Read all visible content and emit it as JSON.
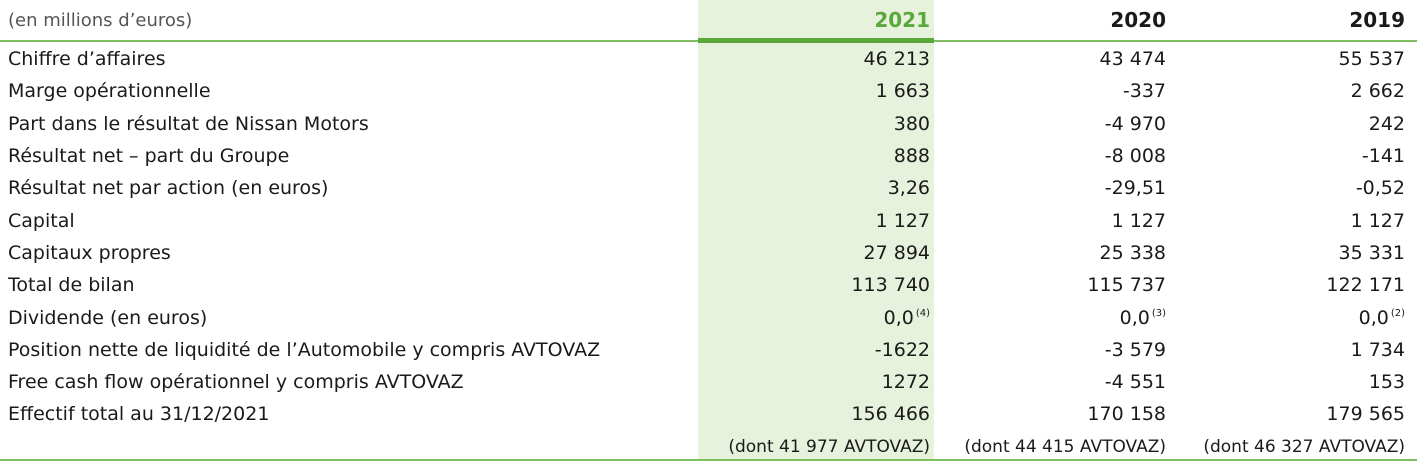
{
  "header": {
    "unit_label": "(en millions d’euros)",
    "years": [
      "2021",
      "2020",
      "2019"
    ]
  },
  "rows": [
    {
      "label": "Chiffre d’affaires",
      "v2021": "46 213",
      "v2020": "43 474",
      "v2019": "55 537"
    },
    {
      "label": "Marge opérationnelle",
      "v2021": "1 663",
      "v2020": "-337",
      "v2019": "2 662"
    },
    {
      "label": "Part dans le résultat de Nissan Motors",
      "v2021": "380",
      "v2020": "-4 970",
      "v2019": "242"
    },
    {
      "label": "Résultat net – part du Groupe",
      "v2021": "888",
      "v2020": "-8 008",
      "v2019": "-141"
    },
    {
      "label": "Résultat net par action (en euros)",
      "v2021": "3,26",
      "v2020": "-29,51",
      "v2019": "-0,52"
    },
    {
      "label": "Capital",
      "v2021": "1 127",
      "v2020": "1 127",
      "v2019": "1 127"
    },
    {
      "label": "Capitaux propres",
      "v2021": "27 894",
      "v2020": "25 338",
      "v2019": "35 331"
    },
    {
      "label": "Total de bilan",
      "v2021": "113 740",
      "v2020": "115 737",
      "v2019": "122 171"
    },
    {
      "label": "Dividende (en euros)",
      "v2021": "0,0",
      "v2020": "0,0",
      "v2019": "0,0",
      "n2021": "(4)",
      "n2020": "(3)",
      "n2019": "(2)"
    },
    {
      "label": "Position nette de liquidité de l’Automobile y compris AVTOVAZ",
      "v2021": "-1622",
      "v2020": "-3 579",
      "v2019": "1 734"
    },
    {
      "label": "Free cash flow opérationnel y compris AVTOVAZ",
      "v2021": "1272",
      "v2020": "-4 551",
      "v2019": "153"
    },
    {
      "label": "Effectif total au 31/12/2021",
      "v2021": "156 466",
      "v2020": "170 158",
      "v2019": "179 565"
    }
  ],
  "footnote_row": {
    "v2021": "(dont 41 977 AVTOVAZ)",
    "v2020": "(dont 44 415 AVTOVAZ)",
    "v2019": "(dont 46 327 AVTOVAZ)"
  },
  "colors": {
    "accent": "#5aa83a",
    "highlight_column": "#e6f2dc",
    "rule": "#7fbf5f"
  }
}
